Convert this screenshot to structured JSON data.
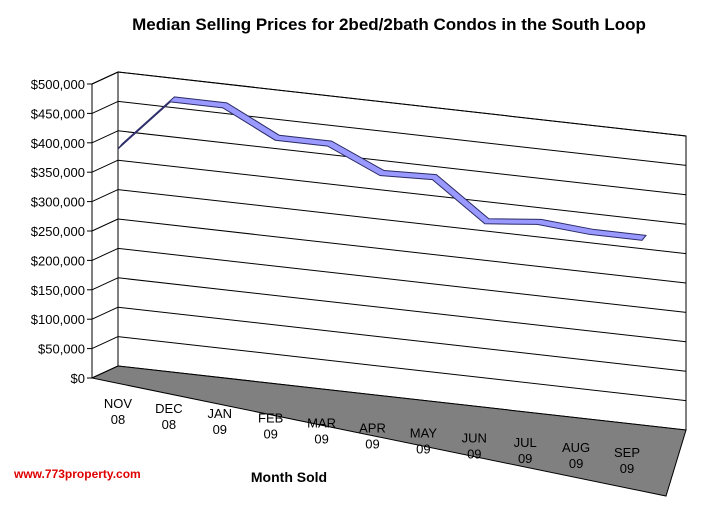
{
  "chart_data": {
    "type": "line",
    "title": "Median Selling Prices for 2bed/2bath Condos in the South Loop",
    "xlabel": "Month Sold",
    "ylabel": "",
    "categories": [
      [
        "NOV",
        "08"
      ],
      [
        "DEC",
        "08"
      ],
      [
        "JAN",
        "09"
      ],
      [
        "FEB",
        "09"
      ],
      [
        "MAR",
        "09"
      ],
      [
        "APR",
        "09"
      ],
      [
        "MAY",
        "09"
      ],
      [
        "JUN",
        "09"
      ],
      [
        "JUL",
        "09"
      ],
      [
        "AUG",
        "09"
      ],
      [
        "SEP",
        "09"
      ]
    ],
    "values": [
      375000,
      465000,
      465000,
      420000,
      420000,
      380000,
      383000,
      318000,
      327000,
      320000,
      320000
    ],
    "ylim": [
      0,
      500000
    ],
    "yticks": [
      "$0",
      "$50,000",
      "$100,000",
      "$150,000",
      "$200,000",
      "$250,000",
      "$300,000",
      "$350,000",
      "$400,000",
      "$450,000",
      "$500,000"
    ],
    "grid": true,
    "legend": "none",
    "colors": {
      "line": "#9999ff",
      "line_edge": "#2a2a66",
      "floor": "#808080"
    }
  },
  "watermark": "www.773property.com"
}
